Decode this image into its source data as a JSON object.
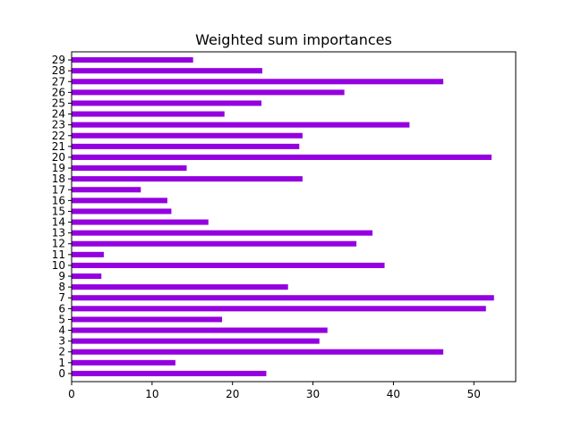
{
  "chart_data": {
    "type": "bar",
    "orientation": "horizontal",
    "title": "Weighted sum importances",
    "xlabel": "",
    "ylabel": "",
    "categories": [
      "0",
      "1",
      "2",
      "3",
      "4",
      "5",
      "6",
      "7",
      "8",
      "9",
      "10",
      "11",
      "12",
      "13",
      "14",
      "15",
      "16",
      "17",
      "18",
      "19",
      "20",
      "21",
      "22",
      "23",
      "24",
      "25",
      "26",
      "27",
      "28",
      "29"
    ],
    "values": [
      24.2,
      12.9,
      46.2,
      30.8,
      31.8,
      18.7,
      51.5,
      52.5,
      26.9,
      3.7,
      38.9,
      4.0,
      35.4,
      37.4,
      17.0,
      12.4,
      11.9,
      8.6,
      28.7,
      14.3,
      52.2,
      28.3,
      28.7,
      42.0,
      19.0,
      23.6,
      33.9,
      46.2,
      23.7,
      15.1
    ],
    "xlim": [
      0,
      55.2
    ],
    "xticks": [
      0,
      10,
      20,
      30,
      40,
      50
    ],
    "grid": false,
    "bar_color": "#9400e0"
  }
}
